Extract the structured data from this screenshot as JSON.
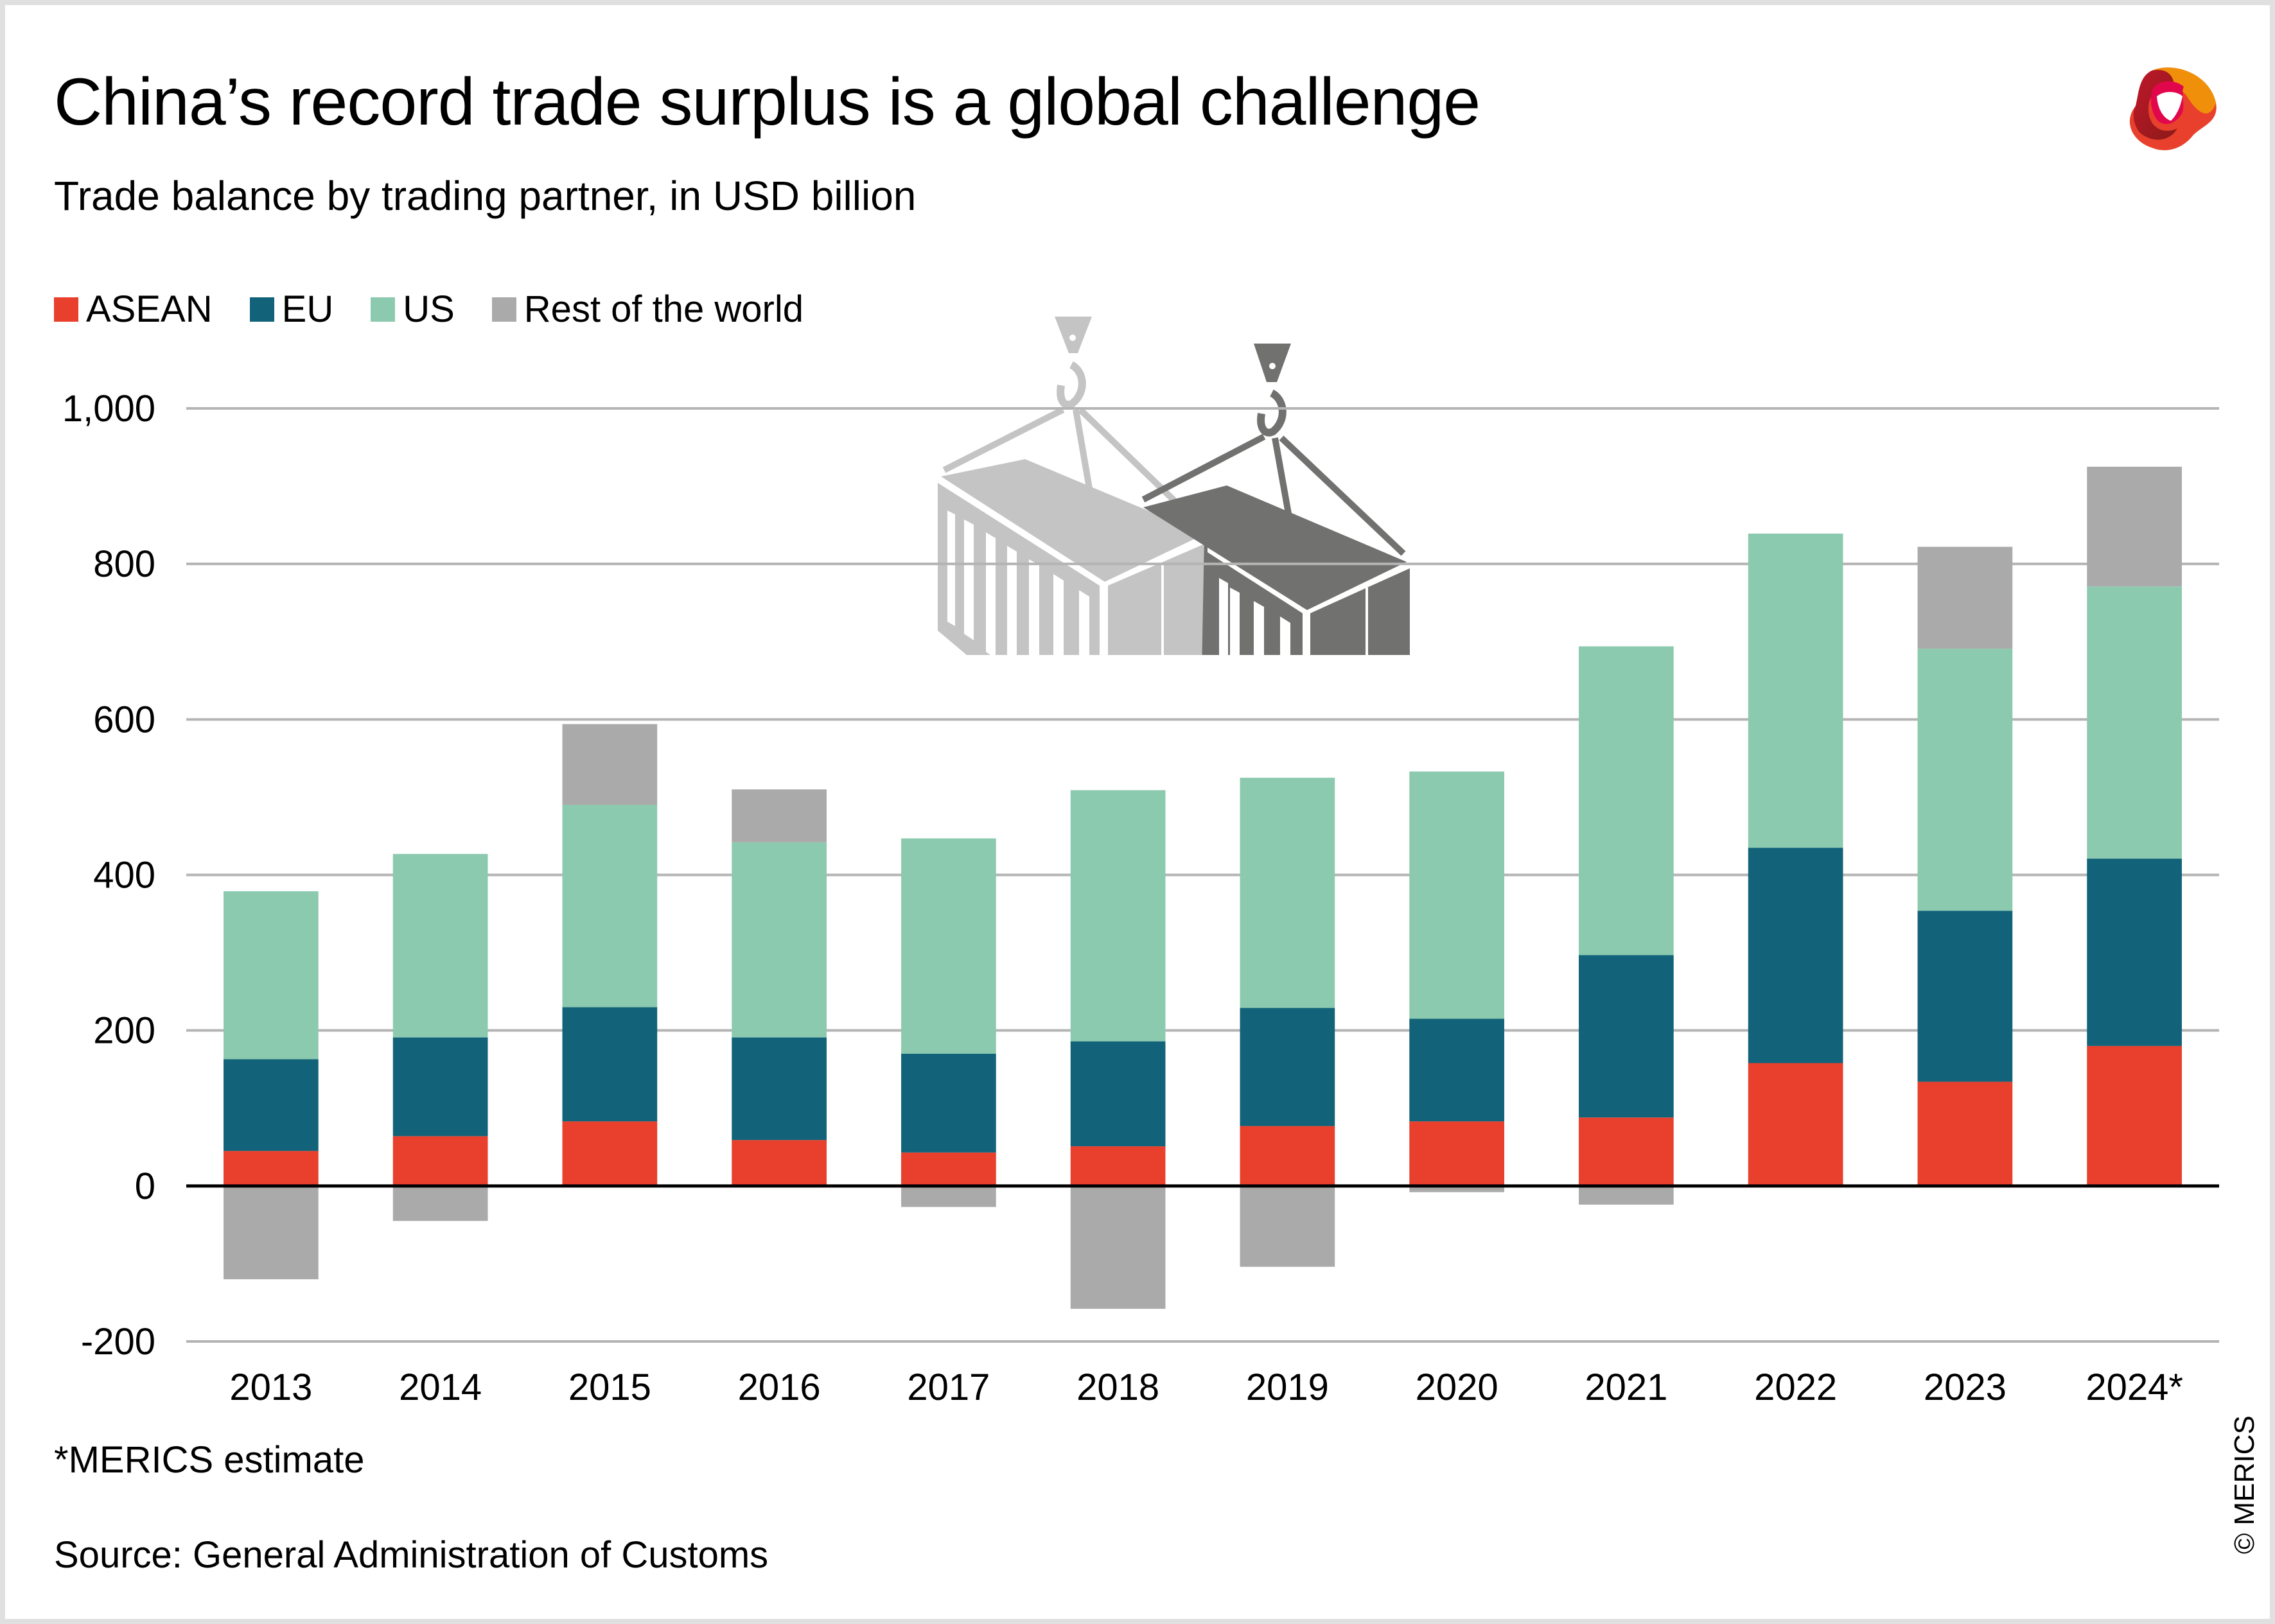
{
  "header": {
    "title": "China’s record trade surplus is a global challenge",
    "subtitle": "Trade balance by trading partner, in USD billion"
  },
  "legend": [
    {
      "label": "ASEAN",
      "color": "#e8402c"
    },
    {
      "label": "EU",
      "color": "#126379"
    },
    {
      "label": "US",
      "color": "#8ccaaf"
    },
    {
      "label": "Rest of the world",
      "color": "#aaaaaa"
    }
  ],
  "footer": {
    "footnote": "*MERICS estimate",
    "source": "Source: General Administration of Customs",
    "copyright": "© MERICS"
  },
  "icons": {
    "logo": "merics-logo-icon",
    "illustration": "shipping-containers-icon"
  },
  "chart_data": {
    "type": "bar",
    "stacked": true,
    "title": "China’s record trade surplus is a global challenge",
    "subtitle": "Trade balance by trading partner, in USD billion",
    "xlabel": "",
    "ylabel": "",
    "categories": [
      "2013",
      "2014",
      "2015",
      "2016",
      "2017",
      "2018",
      "2019",
      "2020",
      "2021",
      "2022",
      "2023",
      "2024*"
    ],
    "series": [
      {
        "name": "ASEAN",
        "color": "#e8402c",
        "values": [
          45,
          64,
          83,
          59,
          43,
          51,
          77,
          83,
          88,
          158,
          134,
          180
        ]
      },
      {
        "name": "EU",
        "color": "#126379",
        "values": [
          118,
          127,
          147,
          132,
          127,
          135,
          152,
          132,
          209,
          277,
          220,
          241
        ]
      },
      {
        "name": "US",
        "color": "#8ccaaf",
        "values": [
          216,
          236,
          260,
          251,
          277,
          323,
          296,
          318,
          397,
          404,
          337,
          350
        ]
      },
      {
        "name": "Rest of the world",
        "color": "#aaaaaa",
        "values": [
          -120,
          -45,
          104,
          68,
          -27,
          -158,
          -104,
          -8,
          -24,
          0,
          131,
          154
        ]
      }
    ],
    "ylim": [
      -200,
      1000
    ],
    "yticks": [
      -200,
      0,
      200,
      400,
      600,
      800,
      1000
    ],
    "ytick_labels": [
      "-200",
      "0",
      "200",
      "400",
      "600",
      "800",
      "1,000"
    ],
    "grid": true,
    "legend_position": "top-left"
  }
}
